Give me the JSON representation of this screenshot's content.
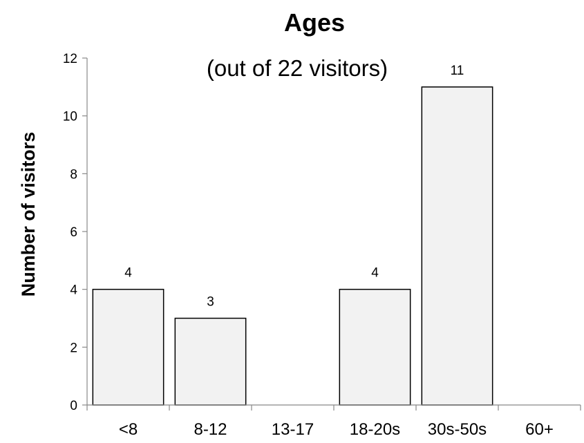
{
  "chart_data": {
    "type": "bar",
    "title": "Ages",
    "subtitle": "(out of 22 visitors)",
    "xlabel": "",
    "ylabel": "Number of visitors",
    "categories": [
      "<8",
      "8-12",
      "13-17",
      "18-20s",
      "30s-50s",
      "60+"
    ],
    "values": [
      4,
      3,
      0,
      4,
      11,
      0
    ],
    "data_labels": [
      "4",
      "3",
      "",
      "4",
      "11",
      ""
    ],
    "ylim": [
      0,
      12
    ],
    "yticks": [
      0,
      2,
      4,
      6,
      8,
      10,
      12
    ],
    "grid": false,
    "bar_color": "#f2f2f2",
    "bar_edge_color": "#000000"
  }
}
